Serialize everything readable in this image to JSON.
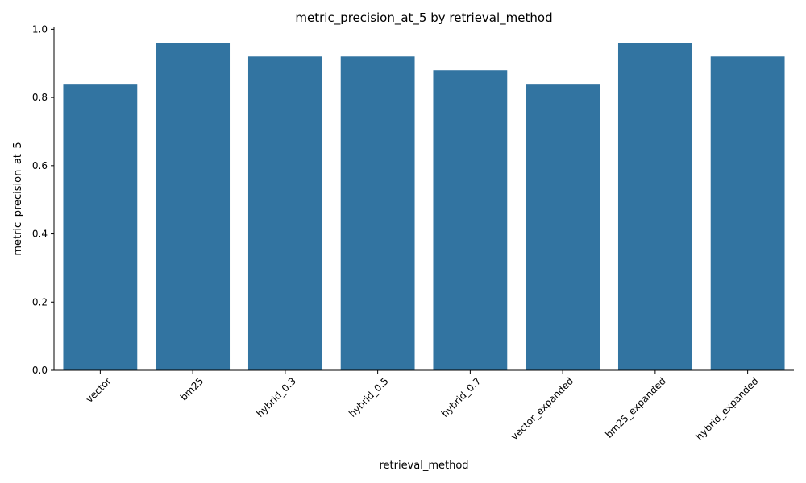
{
  "chart_data": {
    "type": "bar",
    "title": "metric_precision_at_5 by retrieval_method",
    "xlabel": "retrieval_method",
    "ylabel": "metric_precision_at_5",
    "categories": [
      "vector",
      "bm25",
      "hybrid_0.3",
      "hybrid_0.5",
      "hybrid_0.7",
      "vector_expanded",
      "bm25_expanded",
      "hybrid_expanded"
    ],
    "values": [
      0.84,
      0.96,
      0.92,
      0.92,
      0.88,
      0.84,
      0.96,
      0.92
    ],
    "ylim": [
      0,
      1.008
    ],
    "yticks": [
      "0.0",
      "0.2",
      "0.4",
      "0.6",
      "0.8",
      "1.0"
    ],
    "grid": false,
    "bar_color": "#3274a1",
    "xtick_rotation": -45
  }
}
